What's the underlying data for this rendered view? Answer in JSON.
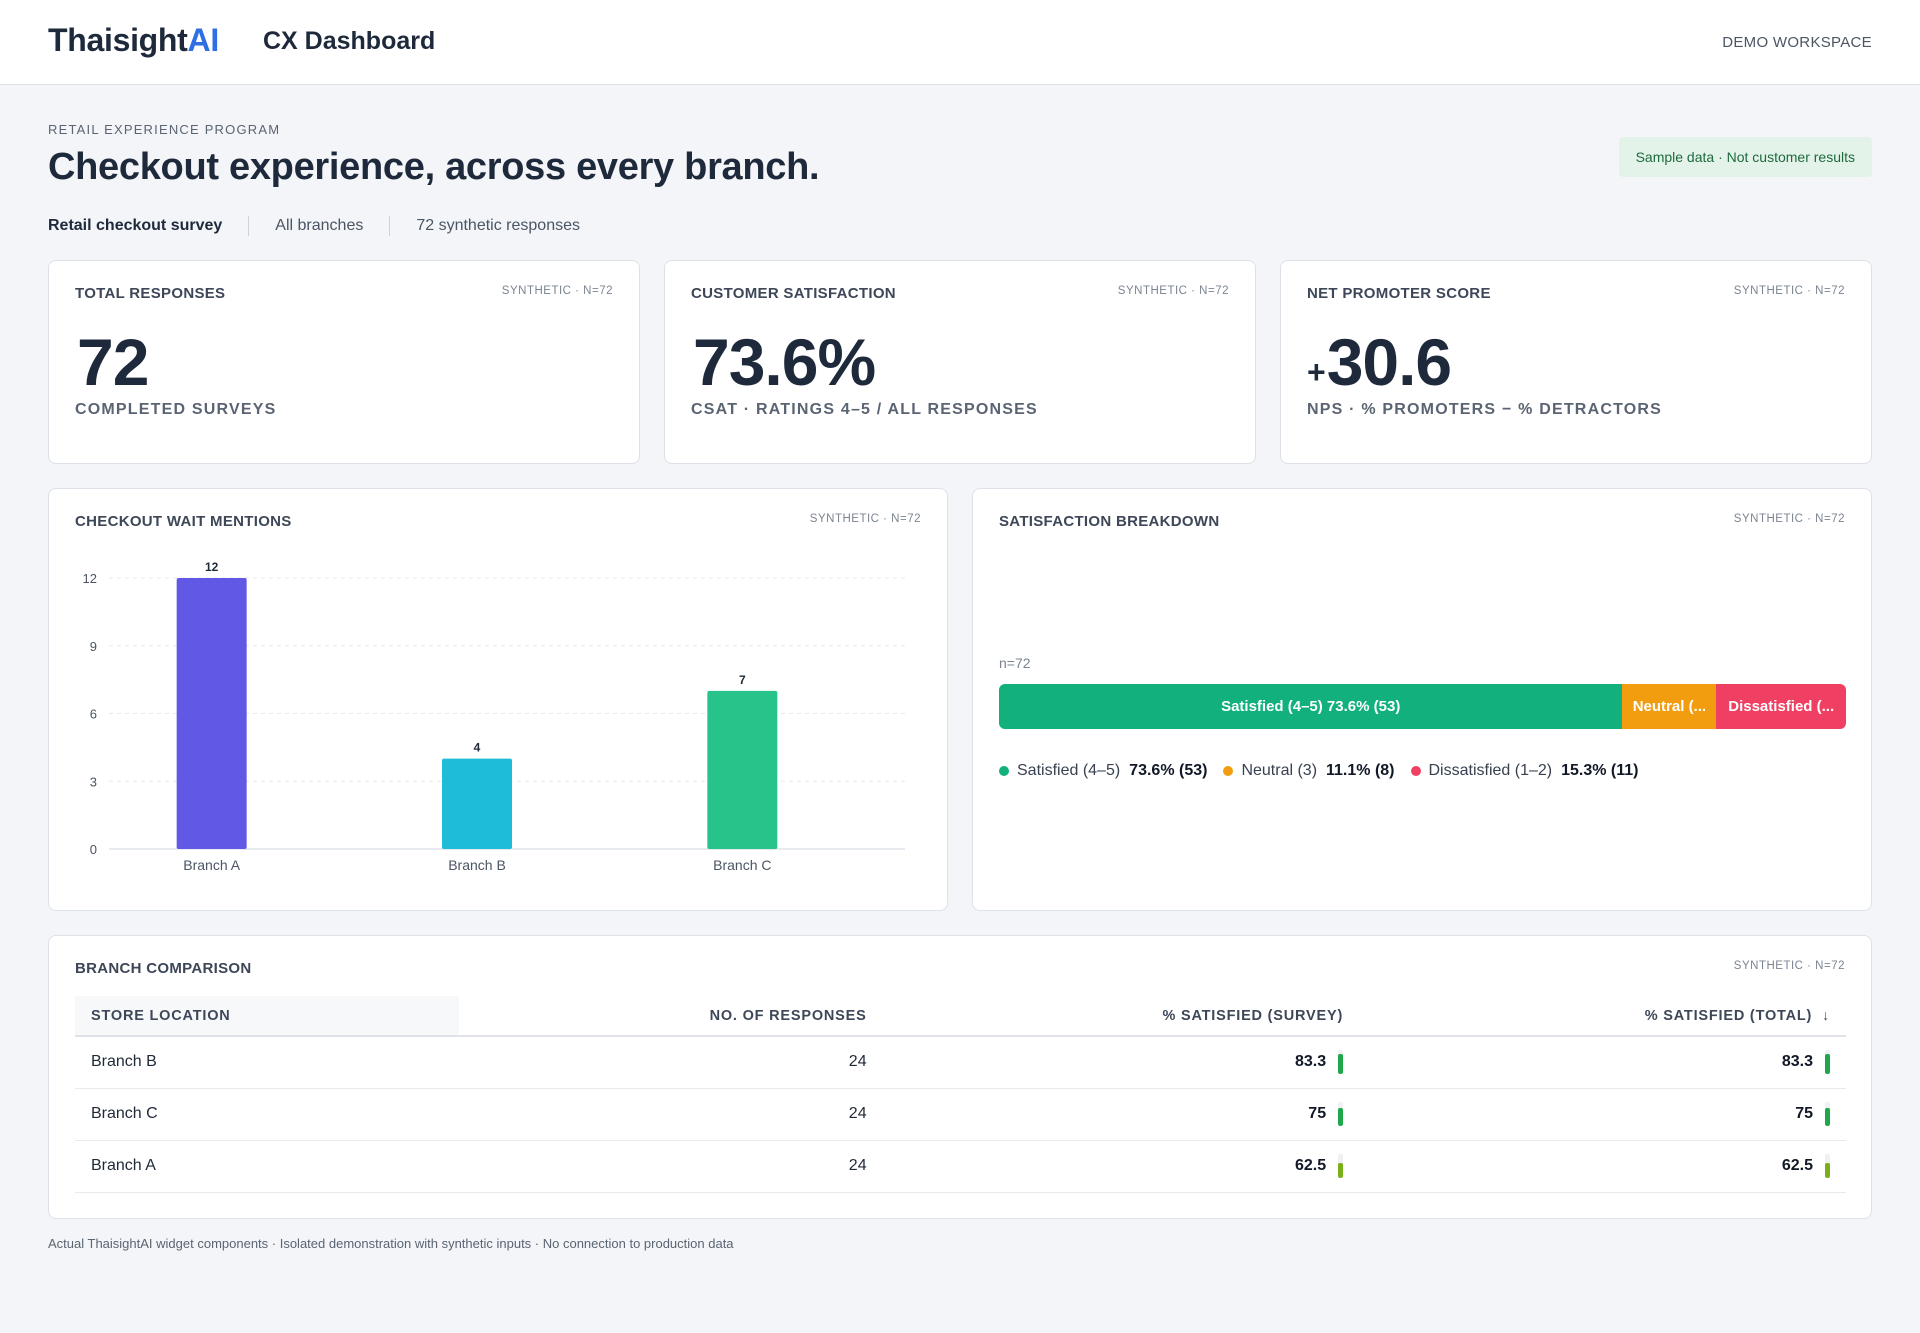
{
  "topbar": {
    "brand_main": "Thaisight",
    "brand_accent": "AI",
    "app_title": "CX Dashboard",
    "workspace": "DEMO WORKSPACE"
  },
  "header": {
    "eyebrow": "RETAIL EXPERIENCE PROGRAM",
    "headline": "Checkout experience, across every branch.",
    "sample_badge": "Sample data · Not customer results",
    "meta": [
      "Retail checkout survey",
      "All branches",
      "72 synthetic responses"
    ]
  },
  "kpis": [
    {
      "title": "TOTAL RESPONSES",
      "tag": "SYNTHETIC · N=72",
      "sign": "",
      "value": "72",
      "sub": "COMPLETED SURVEYS"
    },
    {
      "title": "CUSTOMER SATISFACTION",
      "tag": "SYNTHETIC · N=72",
      "sign": "",
      "value": "73.6%",
      "sub": "CSAT · RATINGS 4–5 / ALL RESPONSES"
    },
    {
      "title": "NET PROMOTER SCORE",
      "tag": "SYNTHETIC · N=72",
      "sign": "+",
      "value": "30.6",
      "sub": "NPS · % PROMOTERS − % DETRACTORS"
    }
  ],
  "wait_chart": {
    "title": "CHECKOUT WAIT MENTIONS",
    "tag": "SYNTHETIC · N=72"
  },
  "chart_data": {
    "type": "bar",
    "categories": [
      "Branch A",
      "Branch B",
      "Branch C"
    ],
    "values": [
      12,
      4,
      7
    ],
    "colors": [
      "#6159e6",
      "#1fbcd8",
      "#28c38b"
    ],
    "yticks": [
      "0",
      "3",
      "6",
      "9",
      "12"
    ],
    "ylim": [
      0,
      12
    ],
    "grid": true,
    "xlabel": "",
    "ylabel": ""
  },
  "breakdown": {
    "title": "SATISFACTION BREAKDOWN",
    "tag": "SYNTHETIC · N=72",
    "n_label": "n=72",
    "segments": [
      {
        "label": "Satisfied (4–5) 73.6% (53)",
        "share": 0.736,
        "color": "#12b07d"
      },
      {
        "label": "Neutral (3) 11.1% (8)",
        "display": "Neutral (...",
        "share": 0.111,
        "color": "#f19d0f"
      },
      {
        "label": "Dissatisfied (1–2) 15.3% (11)",
        "display": "Dissatisfied (...",
        "share": 0.153,
        "color": "#ef3f62"
      }
    ],
    "legend": [
      {
        "name": "Satisfied (4–5)",
        "value": "73.6% (53)",
        "color": "#12b07d"
      },
      {
        "name": "Neutral (3)",
        "value": "11.1% (8)",
        "color": "#f19d0f"
      },
      {
        "name": "Dissatisfied (1–2)",
        "value": "15.3% (11)",
        "color": "#ef3f62"
      }
    ]
  },
  "comparison": {
    "title": "BRANCH COMPARISON",
    "tag": "SYNTHETIC · N=72",
    "columns": [
      "STORE LOCATION",
      "NO. OF RESPONSES",
      "% SATISFIED (SURVEY)",
      "% SATISFIED (TOTAL)"
    ],
    "rows": [
      {
        "location": "Branch B",
        "responses": "24",
        "survey": "83.3",
        "total": "83.3",
        "level": 0.833,
        "color": "#1ea84a"
      },
      {
        "location": "Branch C",
        "responses": "24",
        "survey": "75",
        "total": "75",
        "level": 0.75,
        "color": "#1ea84a"
      },
      {
        "location": "Branch A",
        "responses": "24",
        "survey": "62.5",
        "total": "62.5",
        "level": 0.625,
        "color": "#79b01a"
      }
    ]
  },
  "footer": "Actual ThaisightAI widget components · Isolated demonstration with synthetic inputs · No connection to production data"
}
